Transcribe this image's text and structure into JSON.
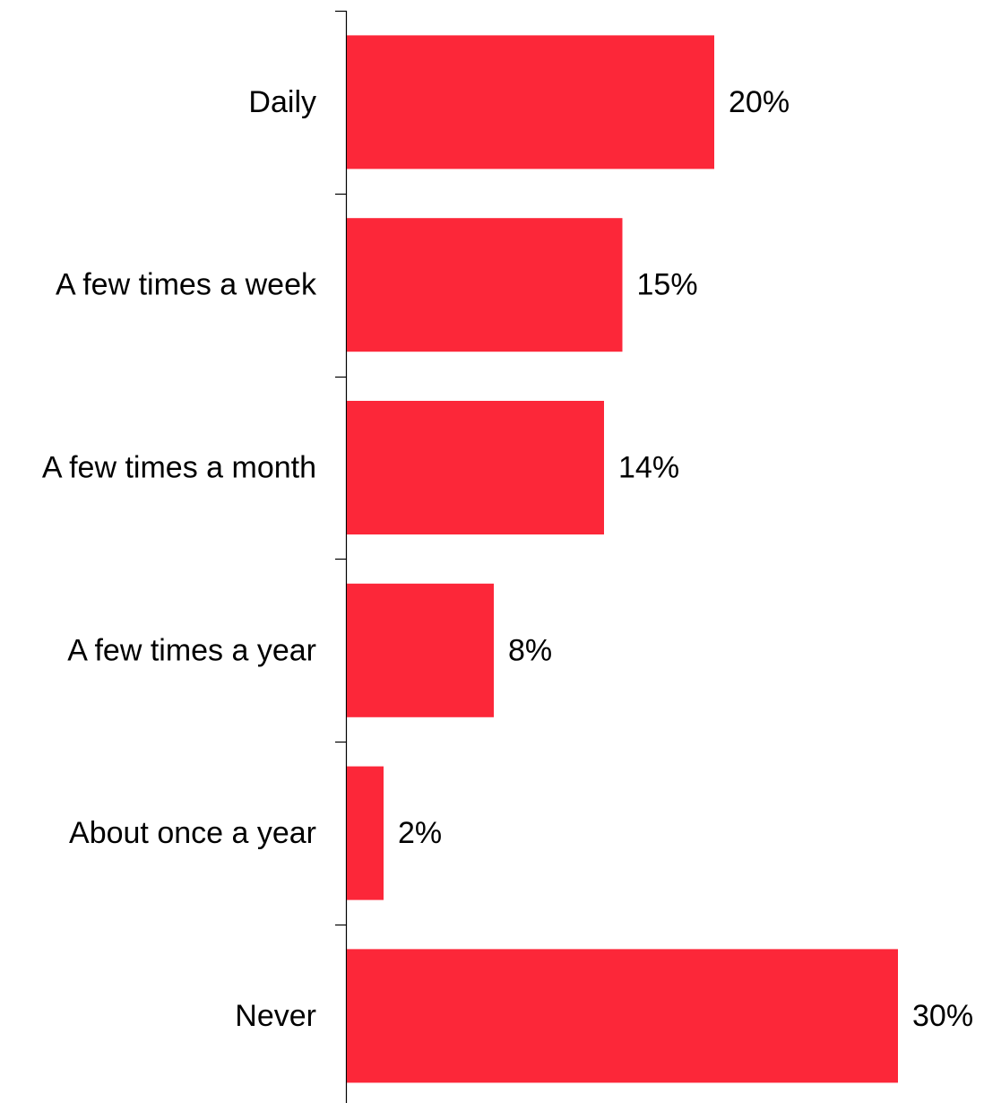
{
  "chart_data": {
    "type": "bar",
    "orientation": "horizontal",
    "categories": [
      "Daily",
      "A few times a week",
      "A few times a month",
      "A few times a year",
      "About once a year",
      "Never"
    ],
    "values": [
      20,
      15,
      14,
      8,
      2,
      30
    ],
    "value_labels": [
      "20%",
      "15%",
      "14%",
      "8%",
      "2%",
      "30%"
    ],
    "unit": "%",
    "xlim": [
      0,
      30
    ],
    "grid": false,
    "legend": "none",
    "bar_color": "#fc2739"
  }
}
